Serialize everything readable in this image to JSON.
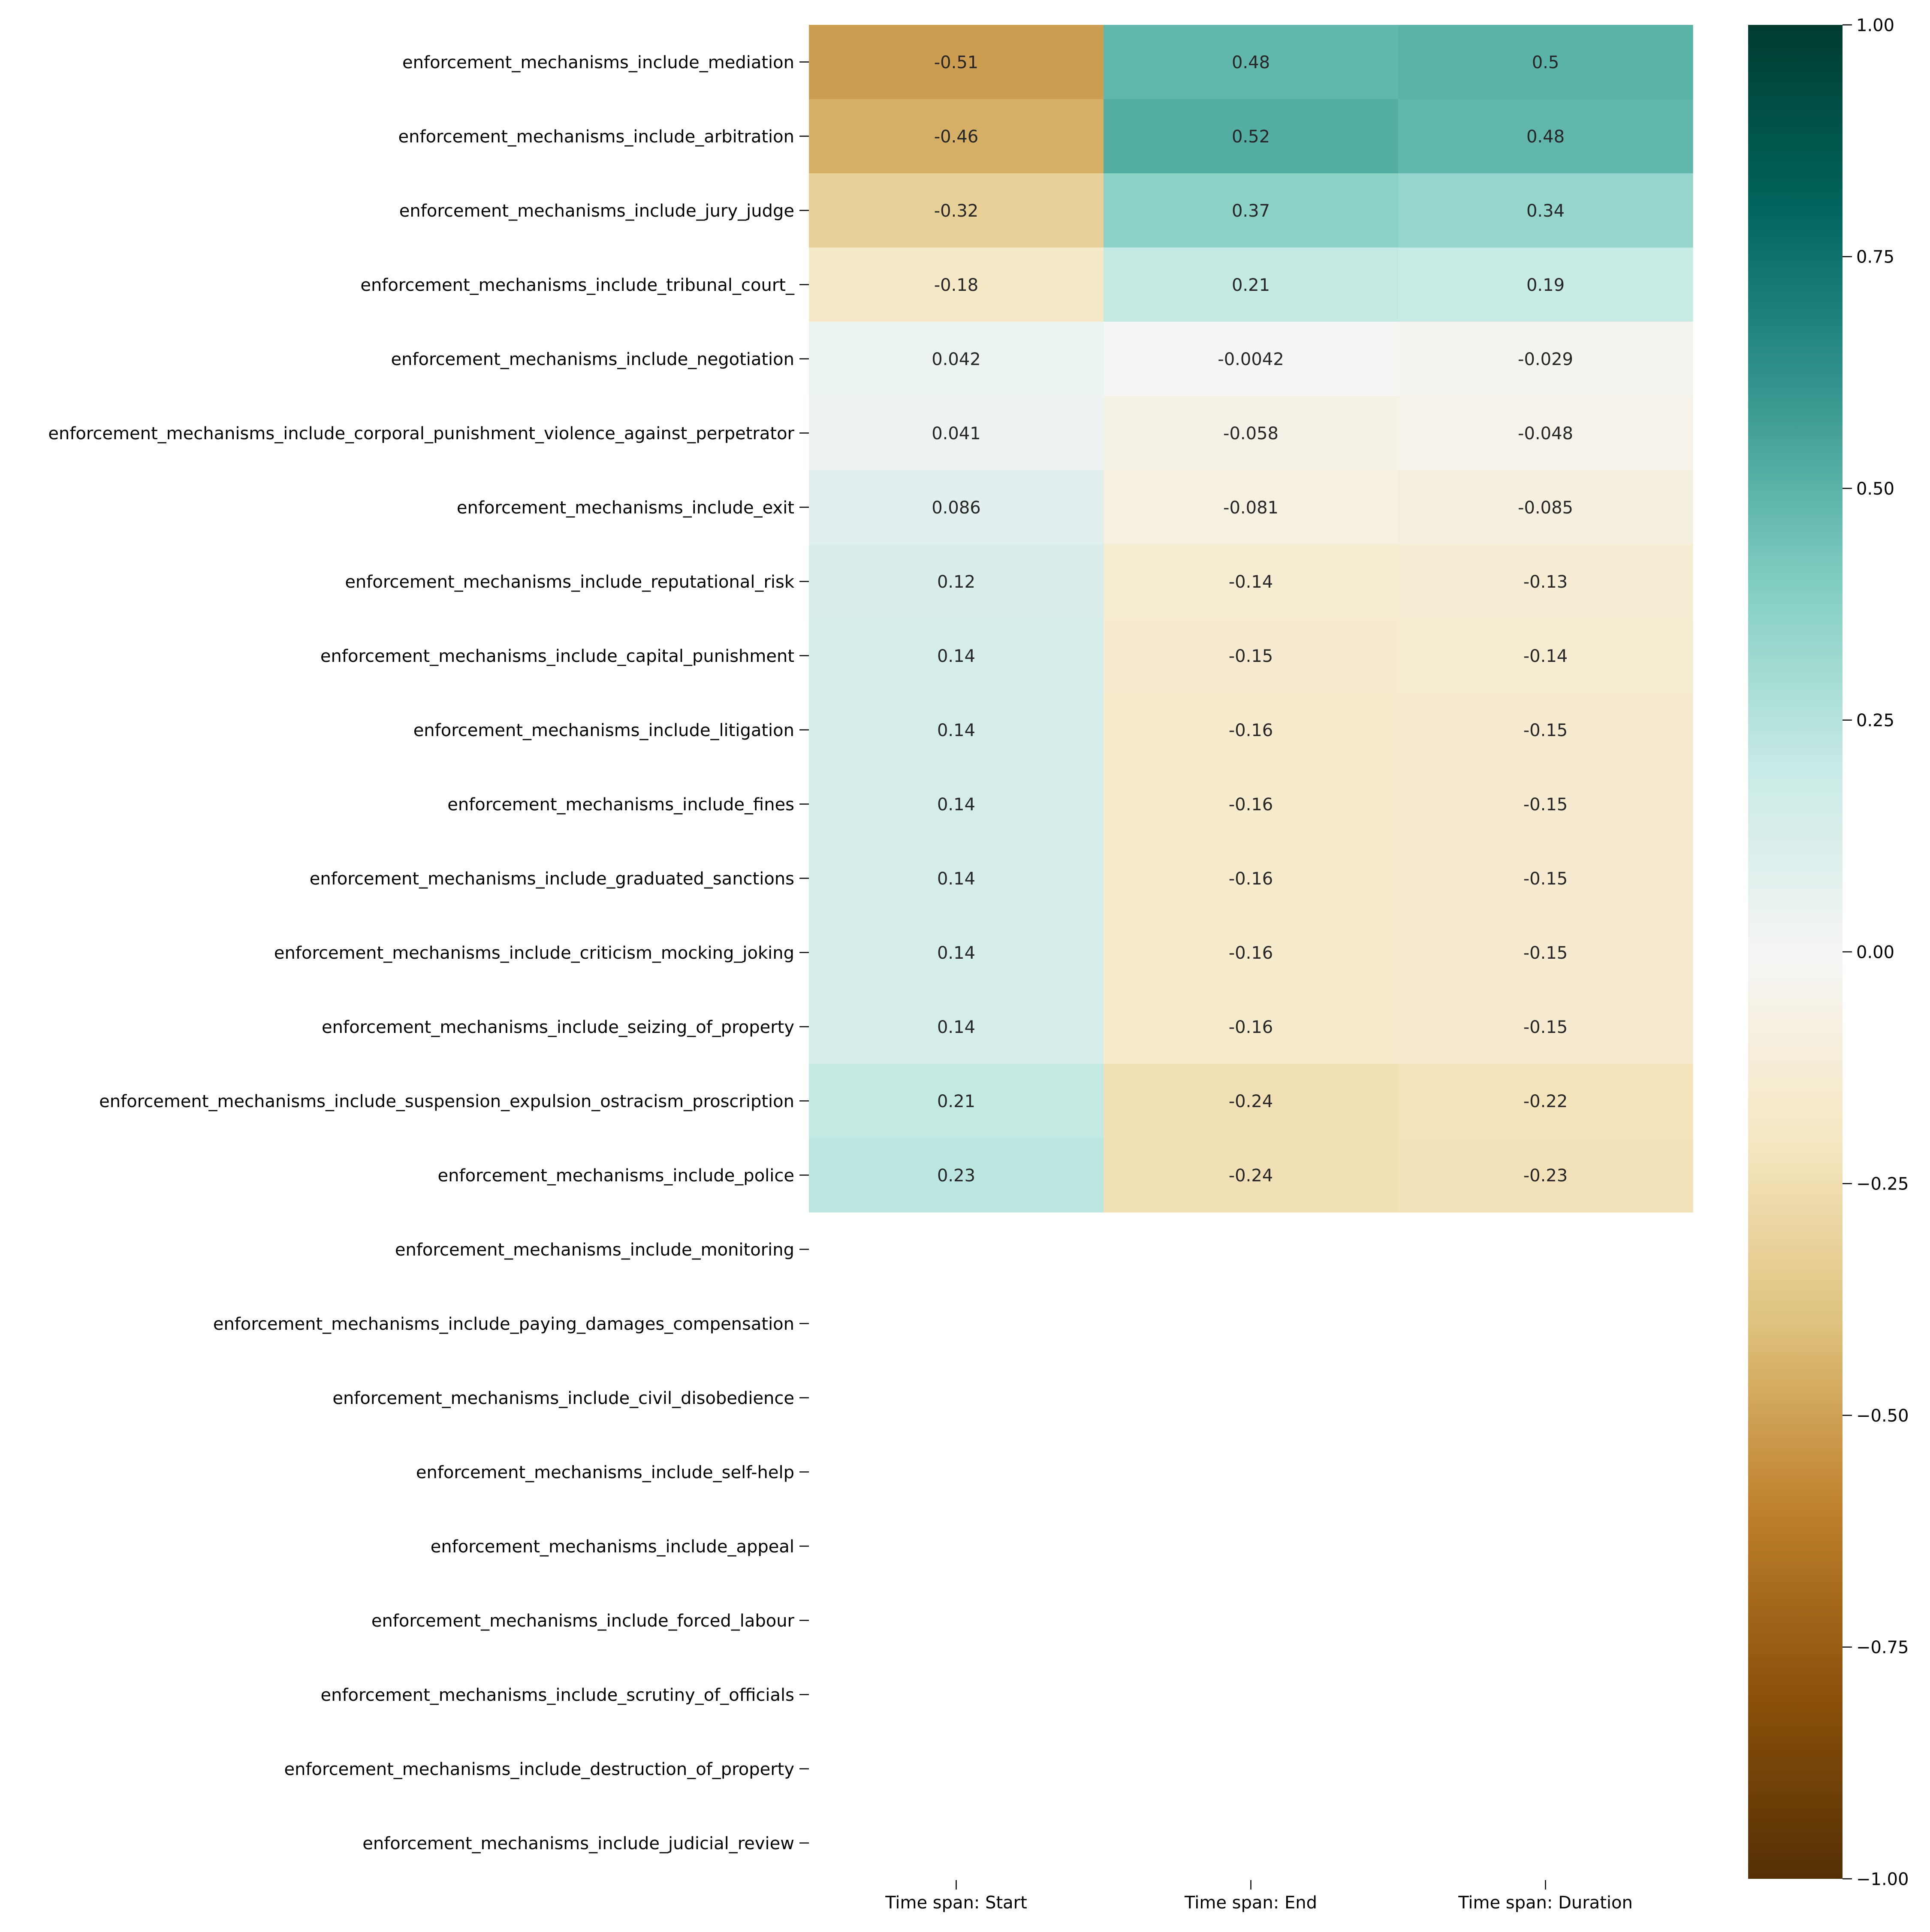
{
  "chart_data": {
    "type": "heatmap",
    "title": "",
    "xlabel": "",
    "ylabel": "",
    "columns": [
      "Time span: Start",
      "Time span: End",
      "Time span: Duration"
    ],
    "rows": [
      "enforcement_mechanisms_include_mediation",
      "enforcement_mechanisms_include_arbitration",
      "enforcement_mechanisms_include_jury_judge",
      "enforcement_mechanisms_include_tribunal_court_",
      "enforcement_mechanisms_include_negotiation",
      "enforcement_mechanisms_include_corporal_punishment_violence_against_perpetrator",
      "enforcement_mechanisms_include_exit",
      "enforcement_mechanisms_include_reputational_risk",
      "enforcement_mechanisms_include_capital_punishment",
      "enforcement_mechanisms_include_litigation",
      "enforcement_mechanisms_include_fines",
      "enforcement_mechanisms_include_graduated_sanctions",
      "enforcement_mechanisms_include_criticism_mocking_joking",
      "enforcement_mechanisms_include_seizing_of_property",
      "enforcement_mechanisms_include_suspension_expulsion_ostracism_proscription",
      "enforcement_mechanisms_include_police",
      "enforcement_mechanisms_include_monitoring",
      "enforcement_mechanisms_include_paying_damages_compensation",
      "enforcement_mechanisms_include_civil_disobedience",
      "enforcement_mechanisms_include_self-help",
      "enforcement_mechanisms_include_appeal",
      "enforcement_mechanisms_include_forced_labour",
      "enforcement_mechanisms_include_scrutiny_of_officials",
      "enforcement_mechanisms_include_destruction_of_property",
      "enforcement_mechanisms_include_judicial_review"
    ],
    "values": [
      [
        -0.51,
        0.48,
        0.5
      ],
      [
        -0.46,
        0.52,
        0.48
      ],
      [
        -0.32,
        0.37,
        0.34
      ],
      [
        -0.18,
        0.21,
        0.19
      ],
      [
        0.042,
        -0.0042,
        -0.029
      ],
      [
        0.041,
        -0.058,
        -0.048
      ],
      [
        0.086,
        -0.081,
        -0.085
      ],
      [
        0.12,
        -0.14,
        -0.13
      ],
      [
        0.14,
        -0.15,
        -0.14
      ],
      [
        0.14,
        -0.16,
        -0.15
      ],
      [
        0.14,
        -0.16,
        -0.15
      ],
      [
        0.14,
        -0.16,
        -0.15
      ],
      [
        0.14,
        -0.16,
        -0.15
      ],
      [
        0.14,
        -0.16,
        -0.15
      ],
      [
        0.21,
        -0.24,
        -0.22
      ],
      [
        0.23,
        -0.24,
        -0.23
      ],
      [
        null,
        null,
        null
      ],
      [
        null,
        null,
        null
      ],
      [
        null,
        null,
        null
      ],
      [
        null,
        null,
        null
      ],
      [
        null,
        null,
        null
      ],
      [
        null,
        null,
        null
      ],
      [
        null,
        null,
        null
      ],
      [
        null,
        null,
        null
      ],
      [
        null,
        null,
        null
      ]
    ],
    "annotation_labels": [
      [
        "-0.51",
        "0.48",
        "0.5"
      ],
      [
        "-0.46",
        "0.52",
        "0.48"
      ],
      [
        "-0.32",
        "0.37",
        "0.34"
      ],
      [
        "-0.18",
        "0.21",
        "0.19"
      ],
      [
        "0.042",
        "-0.0042",
        "-0.029"
      ],
      [
        "0.041",
        "-0.058",
        "-0.048"
      ],
      [
        "0.086",
        "-0.081",
        "-0.085"
      ],
      [
        "0.12",
        "-0.14",
        "-0.13"
      ],
      [
        "0.14",
        "-0.15",
        "-0.14"
      ],
      [
        "0.14",
        "-0.16",
        "-0.15"
      ],
      [
        "0.14",
        "-0.16",
        "-0.15"
      ],
      [
        "0.14",
        "-0.16",
        "-0.15"
      ],
      [
        "0.14",
        "-0.16",
        "-0.15"
      ],
      [
        "0.14",
        "-0.16",
        "-0.15"
      ],
      [
        "0.21",
        "-0.24",
        "-0.22"
      ],
      [
        "0.23",
        "-0.24",
        "-0.23"
      ]
    ],
    "colorbar": {
      "colormap": "BrBG",
      "range": [
        -1.0,
        1.0
      ],
      "tick_values": [
        1.0,
        0.75,
        0.5,
        0.25,
        0.0,
        -0.25,
        -0.5,
        -0.75,
        -1.0
      ],
      "tick_labels": [
        "1.00",
        "0.75",
        "0.50",
        "0.25",
        "0.00",
        "−0.25",
        "−0.50",
        "−0.75",
        "−1.00"
      ],
      "placement": "right"
    },
    "grid": false,
    "colors": {
      "stops": [
        "#543005",
        "#8c510a",
        "#bf812d",
        "#dfc27d",
        "#f6e8c3",
        "#f5f5f5",
        "#c7eae5",
        "#80cdc1",
        "#35978f",
        "#01665e",
        "#003c30"
      ],
      "text_dark": "#262626",
      "text_light": "#ffffff"
    }
  }
}
